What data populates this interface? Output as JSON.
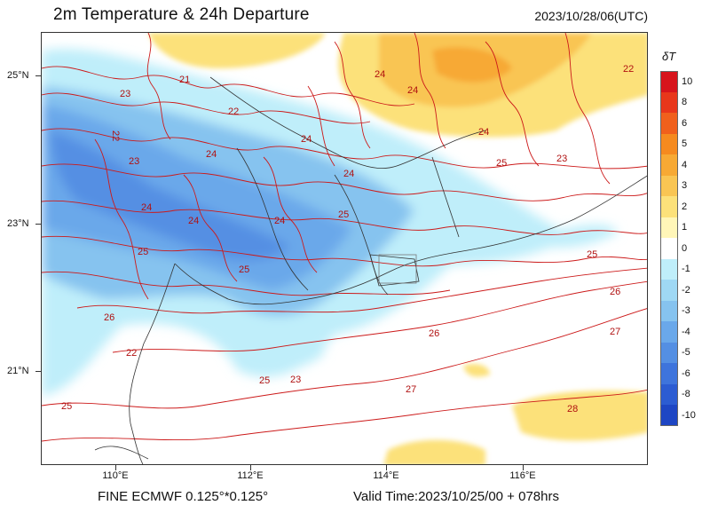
{
  "header": {
    "title": "2m Temperature & 24h Departure",
    "valid_date": "2023/10/28/06(UTC)"
  },
  "footer": {
    "model_info": "FINE ECMWF 0.125°*0.125°",
    "valid_time": "Valid Time:2023/10/25/00 + 078hrs"
  },
  "axes": {
    "latitudes": [
      "25°N",
      "23°N",
      "21°N"
    ],
    "longitudes": [
      "110°E",
      "112°E",
      "114°E",
      "116°E"
    ]
  },
  "legend": {
    "title": "δT",
    "levels": [
      "10",
      "8",
      "6",
      "5",
      "4",
      "3",
      "2",
      "1",
      "0",
      "-1",
      "-2",
      "-3",
      "-4",
      "-5",
      "-6",
      "-8",
      "-10"
    ],
    "colors": [
      "#d7141c",
      "#e8371b",
      "#f0601c",
      "#f58a1f",
      "#f7a934",
      "#f9c553",
      "#fce17a",
      "#fff6b8",
      "#ffffff",
      "#bfeefa",
      "#9fd8f4",
      "#86c3ef",
      "#6aa8ea",
      "#548fe3",
      "#3e74dc",
      "#2c5cd2",
      "#1e46c4"
    ]
  },
  "contour_labels": [
    "21",
    "22",
    "22",
    "22",
    "23",
    "23",
    "23",
    "24",
    "24",
    "24",
    "24",
    "24",
    "24",
    "24",
    "24",
    "24",
    "25",
    "25",
    "25",
    "25",
    "25",
    "25",
    "25",
    "26",
    "26",
    "26",
    "27",
    "27",
    "28",
    "22",
    "23"
  ],
  "colors": {
    "contour_line": "#cc1a1a",
    "boundary_line": "#333333"
  }
}
